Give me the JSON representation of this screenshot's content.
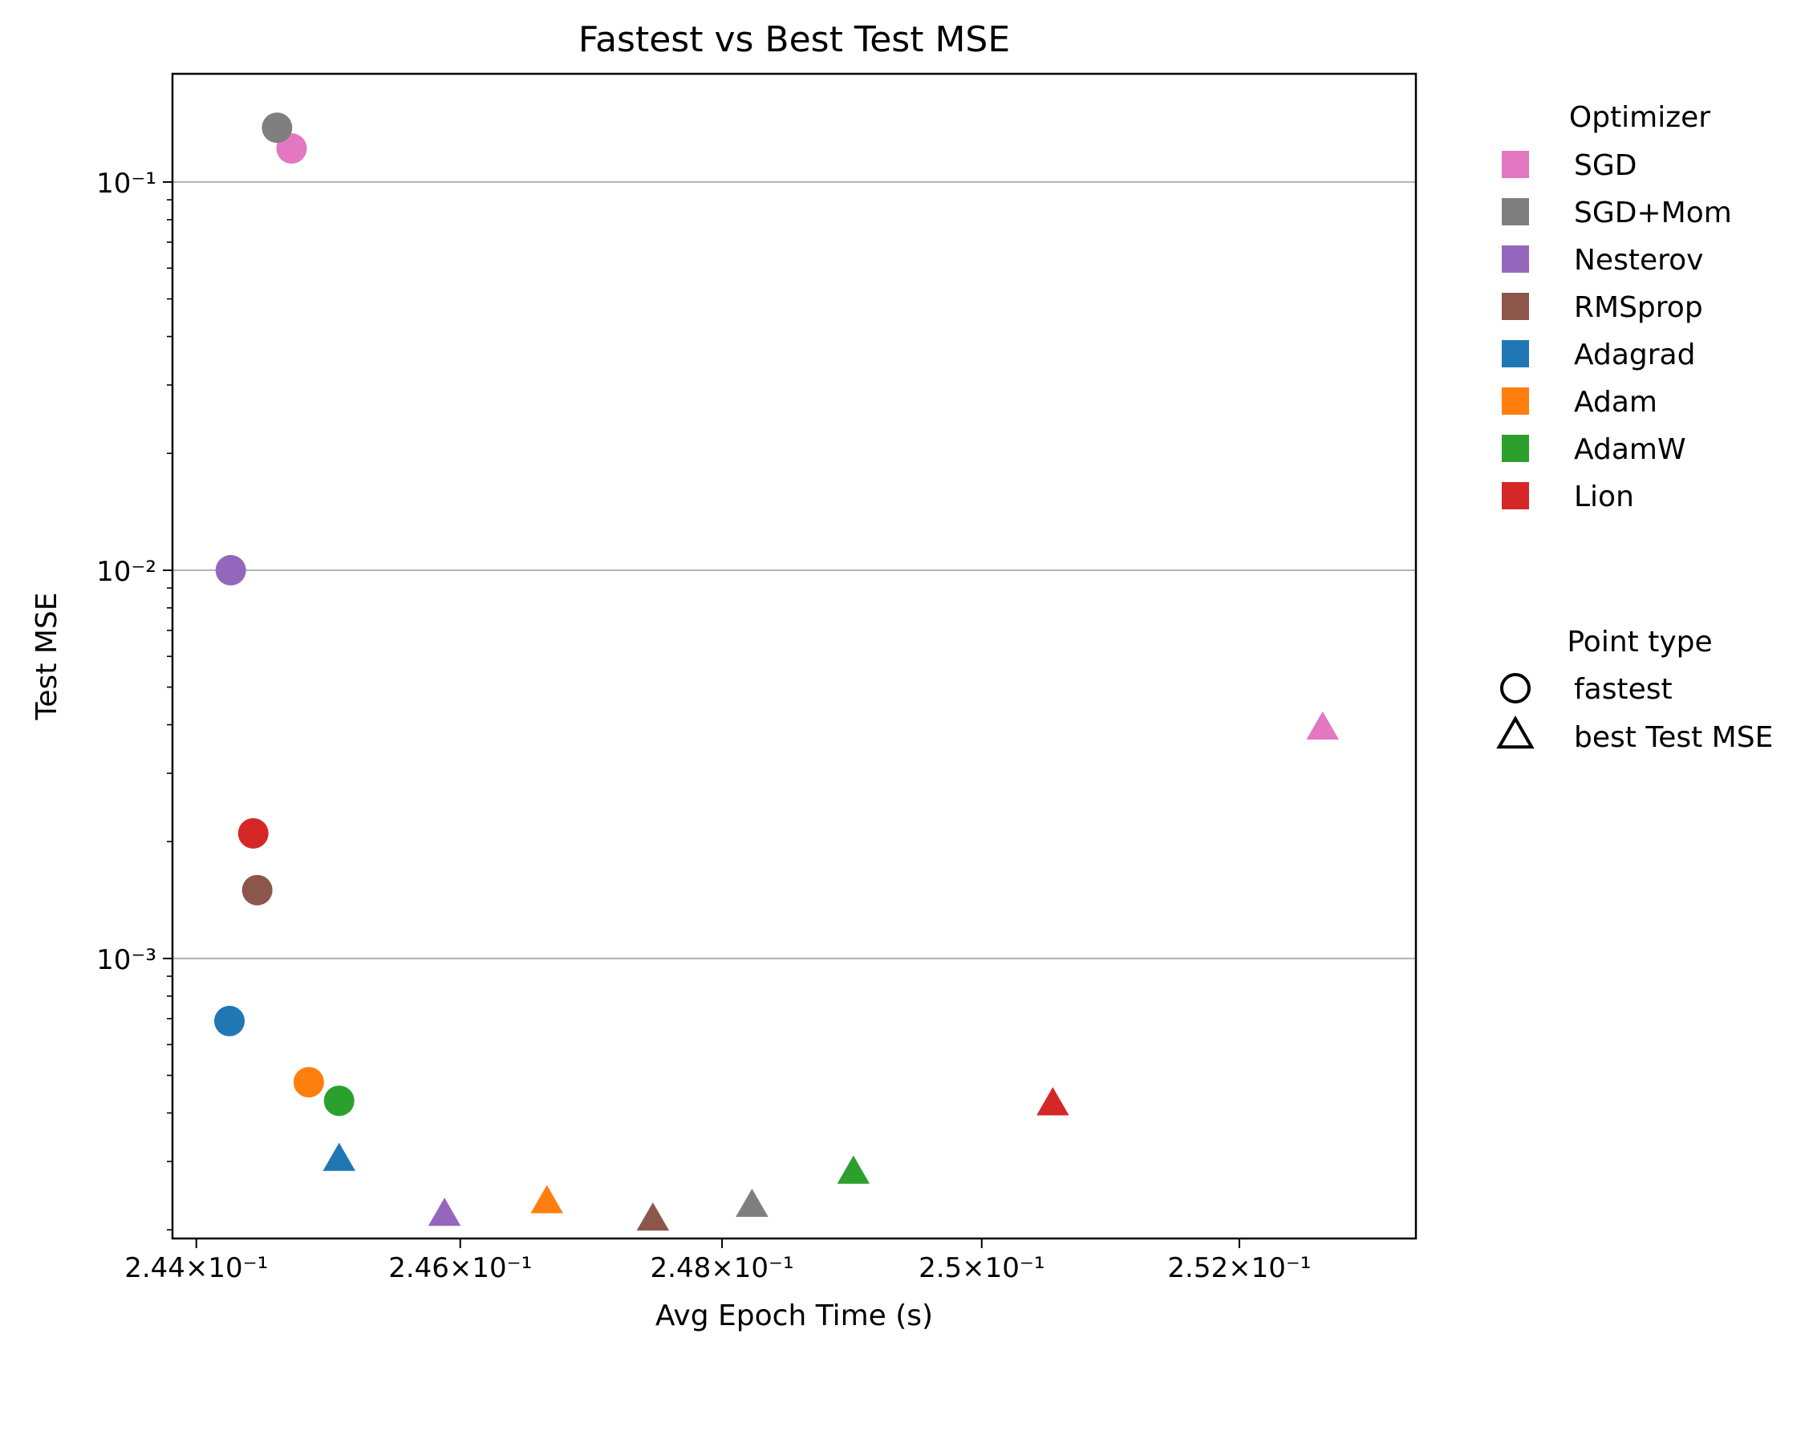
{
  "chart_data": {
    "type": "scatter",
    "title": "Fastest vs Best Test MSE",
    "xlabel": "Avg Epoch Time (s)",
    "ylabel": "Test MSE",
    "xscale": "log",
    "yscale": "log",
    "xlim": [
      0.24382,
      0.25338
    ],
    "ylim": [
      0.00019,
      0.19
    ],
    "x_ticks": [
      {
        "value": 0.244,
        "label": "2.44×10⁻¹"
      },
      {
        "value": 0.246,
        "label": "2.46×10⁻¹"
      },
      {
        "value": 0.248,
        "label": "2.48×10⁻¹"
      },
      {
        "value": 0.25,
        "label": "2.5×10⁻¹"
      },
      {
        "value": 0.252,
        "label": "2.52×10⁻¹"
      }
    ],
    "y_ticks": [
      {
        "value": 0.1,
        "label": "10⁻¹"
      },
      {
        "value": 0.01,
        "label": "10⁻²"
      },
      {
        "value": 0.001,
        "label": "10⁻³"
      }
    ],
    "grid": "y-major",
    "legend_position": "outside-right",
    "legend": {
      "optimizer_title": "Optimizer",
      "point_type_title": "Point type",
      "point_types": [
        {
          "name": "fastest",
          "marker": "circle"
        },
        {
          "name": "best Test MSE",
          "marker": "triangle"
        }
      ]
    },
    "series": [
      {
        "name": "SGD",
        "color": "#e377c2",
        "fastest": {
          "x": 0.24472,
          "y": 0.122
        },
        "best": {
          "x": 0.25265,
          "y": 0.0039
        }
      },
      {
        "name": "SGD+Mom",
        "color": "#7f7f7f",
        "fastest": {
          "x": 0.24461,
          "y": 0.138
        },
        "best": {
          "x": 0.24823,
          "y": 0.00023
        }
      },
      {
        "name": "Nesterov",
        "color": "#9467bd",
        "fastest": {
          "x": 0.24426,
          "y": 0.01
        },
        "best": {
          "x": 0.24588,
          "y": 0.000218
        }
      },
      {
        "name": "RMSprop",
        "color": "#8c564b",
        "fastest": {
          "x": 0.24446,
          "y": 0.0015
        },
        "best": {
          "x": 0.24747,
          "y": 0.000212
        }
      },
      {
        "name": "Adagrad",
        "color": "#1f77b4",
        "fastest": {
          "x": 0.24425,
          "y": 0.00069
        },
        "best": {
          "x": 0.24508,
          "y": 0.000302
        }
      },
      {
        "name": "Adam",
        "color": "#ff7f0e",
        "fastest": {
          "x": 0.24485,
          "y": 0.00048
        },
        "best": {
          "x": 0.24666,
          "y": 0.000235
        }
      },
      {
        "name": "AdamW",
        "color": "#2ca02c",
        "fastest": {
          "x": 0.24508,
          "y": 0.00043
        },
        "best": {
          "x": 0.24901,
          "y": 0.00028
        }
      },
      {
        "name": "Lion",
        "color": "#d62728",
        "fastest": {
          "x": 0.24443,
          "y": 0.0021
        },
        "best": {
          "x": 0.25055,
          "y": 0.00042
        }
      }
    ]
  }
}
